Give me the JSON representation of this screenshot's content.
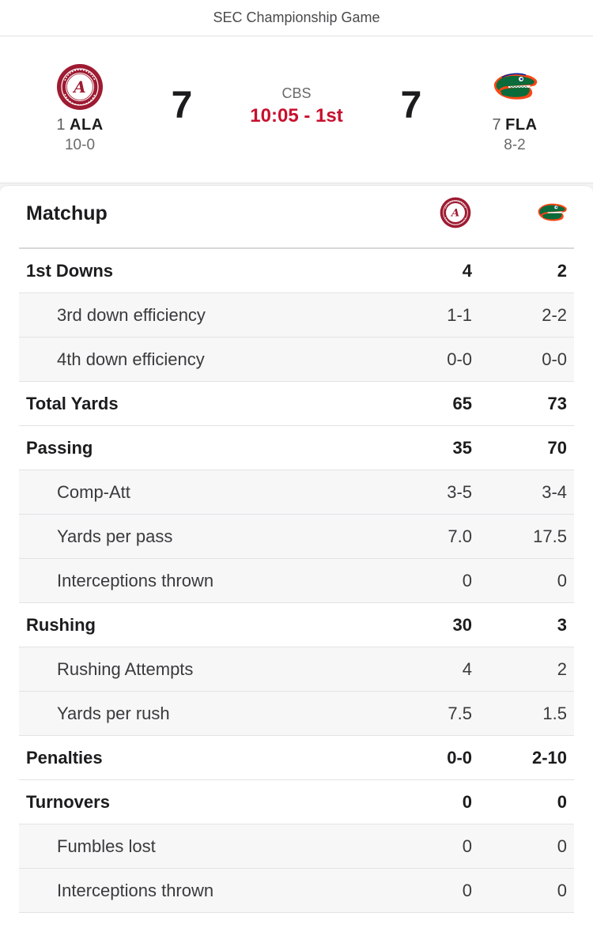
{
  "header": {
    "title": "SEC Championship Game"
  },
  "scoreboard": {
    "away": {
      "rank": "1",
      "abbr": "ALA",
      "record": "10-0",
      "score": "7",
      "logo_icon": "alabama-crimson-tide-logo-icon",
      "color": "#9e1b32"
    },
    "home": {
      "rank": "7",
      "abbr": "FLA",
      "record": "8-2",
      "score": "7",
      "logo_icon": "florida-gators-logo-icon",
      "color": "#0021a5"
    },
    "network": "CBS",
    "clock": "10:05 - 1st",
    "clock_color": "#c8102e"
  },
  "matchup": {
    "title": "Matchup",
    "rows": [
      {
        "label": "1st Downs",
        "away": "4",
        "home": "2",
        "type": "main"
      },
      {
        "label": "3rd down efficiency",
        "away": "1-1",
        "home": "2-2",
        "type": "sub"
      },
      {
        "label": "4th down efficiency",
        "away": "0-0",
        "home": "0-0",
        "type": "sub"
      },
      {
        "label": "Total Yards",
        "away": "65",
        "home": "73",
        "type": "main"
      },
      {
        "label": "Passing",
        "away": "35",
        "home": "70",
        "type": "main"
      },
      {
        "label": "Comp-Att",
        "away": "3-5",
        "home": "3-4",
        "type": "sub"
      },
      {
        "label": "Yards per pass",
        "away": "7.0",
        "home": "17.5",
        "type": "sub"
      },
      {
        "label": "Interceptions thrown",
        "away": "0",
        "home": "0",
        "type": "sub"
      },
      {
        "label": "Rushing",
        "away": "30",
        "home": "3",
        "type": "main"
      },
      {
        "label": "Rushing Attempts",
        "away": "4",
        "home": "2",
        "type": "sub"
      },
      {
        "label": "Yards per rush",
        "away": "7.5",
        "home": "1.5",
        "type": "sub"
      },
      {
        "label": "Penalties",
        "away": "0-0",
        "home": "2-10",
        "type": "main"
      },
      {
        "label": "Turnovers",
        "away": "0",
        "home": "0",
        "type": "main"
      },
      {
        "label": "Fumbles lost",
        "away": "0",
        "home": "0",
        "type": "sub"
      },
      {
        "label": "Interceptions thrown",
        "away": "0",
        "home": "0",
        "type": "sub"
      }
    ]
  }
}
